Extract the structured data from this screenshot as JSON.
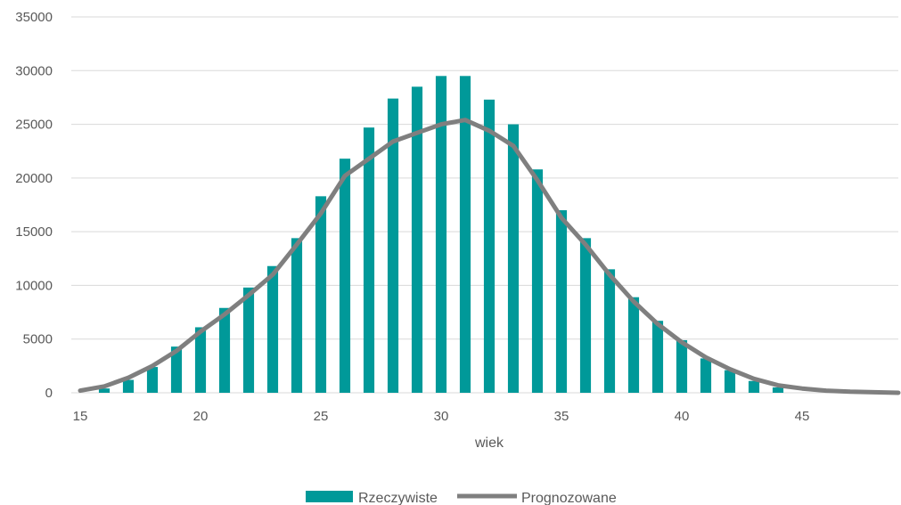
{
  "chart_data": {
    "type": "bar",
    "title": "",
    "xlabel": "wiek",
    "ylabel": "",
    "ylim": [
      0,
      35000
    ],
    "yticks": [
      0,
      5000,
      10000,
      15000,
      20000,
      25000,
      30000,
      35000
    ],
    "xlim": [
      15,
      49
    ],
    "xticks": [
      15,
      20,
      25,
      30,
      35,
      40,
      45
    ],
    "grid": true,
    "legend_position": "bottom",
    "x": [
      15,
      16,
      17,
      18,
      19,
      20,
      21,
      22,
      23,
      24,
      25,
      26,
      27,
      28,
      29,
      30,
      31,
      32,
      33,
      34,
      35,
      36,
      37,
      38,
      39,
      40,
      41,
      42,
      43,
      44,
      45,
      46,
      47,
      48,
      49
    ],
    "series": [
      {
        "name": "Rzeczywiste",
        "type": "bar",
        "color": "#009999",
        "values": [
          0,
          400,
          1200,
          2400,
          4300,
          6100,
          7900,
          9800,
          11800,
          14400,
          18300,
          21800,
          24700,
          27400,
          28500,
          29500,
          29500,
          27300,
          25000,
          20800,
          17000,
          14400,
          11500,
          8900,
          6700,
          4900,
          3200,
          2100,
          1100,
          500,
          0,
          0,
          0,
          0,
          0
        ]
      },
      {
        "name": "Prognozowane",
        "type": "line",
        "color": "#7f7f7f",
        "values": [
          200,
          600,
          1400,
          2500,
          3900,
          5700,
          7300,
          9100,
          11000,
          13800,
          16700,
          20200,
          21800,
          23400,
          24200,
          25000,
          25400,
          24400,
          23000,
          19800,
          16300,
          13800,
          11000,
          8500,
          6400,
          4700,
          3300,
          2200,
          1300,
          700,
          400,
          200,
          100,
          50,
          0
        ]
      }
    ]
  }
}
